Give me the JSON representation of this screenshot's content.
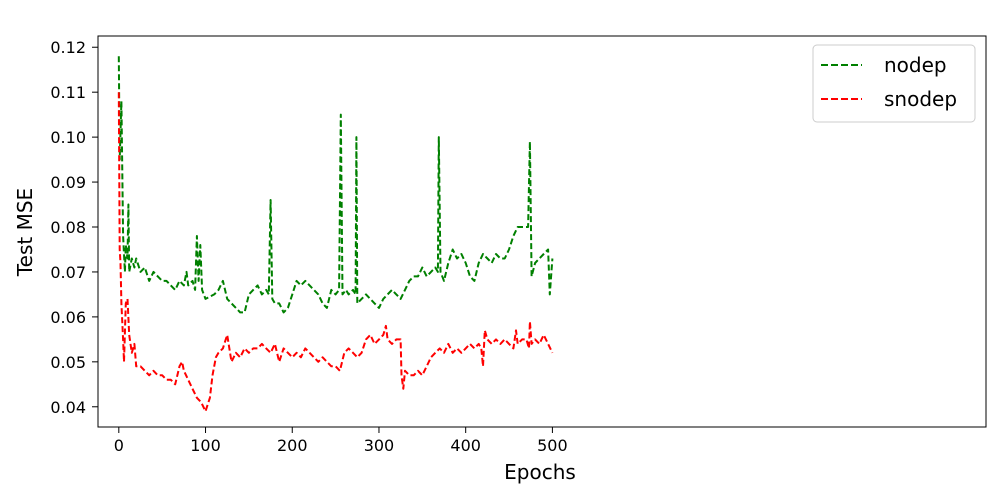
{
  "chart_data": {
    "type": "line",
    "xlabel": "Epochs",
    "ylabel": "Test MSE",
    "xlim": [
      -24,
      1000
    ],
    "ylim": [
      0.0355,
      0.1225
    ],
    "xticks": [
      0,
      100,
      200,
      300,
      400,
      500
    ],
    "yticks": [
      0.04,
      0.05,
      0.06,
      0.07,
      0.08,
      0.09,
      0.1,
      0.11,
      0.12
    ],
    "ytick_labels": [
      "0.04",
      "0.05",
      "0.06",
      "0.07",
      "0.08",
      "0.09",
      "0.10",
      "0.11",
      "0.12"
    ],
    "grid": false,
    "legend_position": "top-right",
    "series": [
      {
        "name": "nodep",
        "color": "#008000",
        "dash": "dashed",
        "points": [
          [
            0,
            0.118
          ],
          [
            1,
            0.095
          ],
          [
            3,
            0.108
          ],
          [
            5,
            0.078
          ],
          [
            7,
            0.07
          ],
          [
            8,
            0.076
          ],
          [
            10,
            0.073
          ],
          [
            11,
            0.085
          ],
          [
            12,
            0.07
          ],
          [
            15,
            0.073
          ],
          [
            18,
            0.071
          ],
          [
            20,
            0.073
          ],
          [
            25,
            0.07
          ],
          [
            30,
            0.071
          ],
          [
            35,
            0.068
          ],
          [
            40,
            0.07
          ],
          [
            45,
            0.069
          ],
          [
            50,
            0.068
          ],
          [
            55,
            0.068
          ],
          [
            60,
            0.067
          ],
          [
            65,
            0.066
          ],
          [
            70,
            0.068
          ],
          [
            75,
            0.067
          ],
          [
            78,
            0.07
          ],
          [
            80,
            0.067
          ],
          [
            85,
            0.068
          ],
          [
            88,
            0.066
          ],
          [
            90,
            0.078
          ],
          [
            92,
            0.068
          ],
          [
            94,
            0.076
          ],
          [
            96,
            0.066
          ],
          [
            100,
            0.064
          ],
          [
            110,
            0.065
          ],
          [
            115,
            0.066
          ],
          [
            120,
            0.068
          ],
          [
            125,
            0.064
          ],
          [
            130,
            0.063
          ],
          [
            135,
            0.062
          ],
          [
            140,
            0.061
          ],
          [
            145,
            0.061
          ],
          [
            150,
            0.065
          ],
          [
            155,
            0.066
          ],
          [
            160,
            0.067
          ],
          [
            165,
            0.065
          ],
          [
            170,
            0.066
          ],
          [
            173,
            0.065
          ],
          [
            175,
            0.086
          ],
          [
            177,
            0.064
          ],
          [
            180,
            0.063
          ],
          [
            185,
            0.063
          ],
          [
            190,
            0.061
          ],
          [
            195,
            0.062
          ],
          [
            200,
            0.065
          ],
          [
            205,
            0.068
          ],
          [
            210,
            0.067
          ],
          [
            215,
            0.068
          ],
          [
            220,
            0.067
          ],
          [
            225,
            0.066
          ],
          [
            230,
            0.065
          ],
          [
            235,
            0.063
          ],
          [
            240,
            0.062
          ],
          [
            245,
            0.066
          ],
          [
            250,
            0.065
          ],
          [
            254,
            0.066
          ],
          [
            256,
            0.105
          ],
          [
            258,
            0.065
          ],
          [
            262,
            0.066
          ],
          [
            265,
            0.065
          ],
          [
            270,
            0.066
          ],
          [
            273,
            0.065
          ],
          [
            274,
            0.1
          ],
          [
            275,
            0.063
          ],
          [
            280,
            0.064
          ],
          [
            285,
            0.065
          ],
          [
            290,
            0.064
          ],
          [
            295,
            0.063
          ],
          [
            300,
            0.062
          ],
          [
            305,
            0.064
          ],
          [
            310,
            0.065
          ],
          [
            315,
            0.066
          ],
          [
            320,
            0.065
          ],
          [
            325,
            0.064
          ],
          [
            330,
            0.066
          ],
          [
            335,
            0.068
          ],
          [
            340,
            0.069
          ],
          [
            345,
            0.069
          ],
          [
            350,
            0.071
          ],
          [
            355,
            0.069
          ],
          [
            360,
            0.07
          ],
          [
            365,
            0.071
          ],
          [
            368,
            0.07
          ],
          [
            369,
            0.1
          ],
          [
            371,
            0.07
          ],
          [
            375,
            0.068
          ],
          [
            380,
            0.072
          ],
          [
            385,
            0.075
          ],
          [
            390,
            0.073
          ],
          [
            395,
            0.074
          ],
          [
            400,
            0.072
          ],
          [
            405,
            0.069
          ],
          [
            410,
            0.068
          ],
          [
            415,
            0.072
          ],
          [
            420,
            0.074
          ],
          [
            425,
            0.073
          ],
          [
            430,
            0.072
          ],
          [
            435,
            0.074
          ],
          [
            440,
            0.073
          ],
          [
            445,
            0.073
          ],
          [
            450,
            0.075
          ],
          [
            455,
            0.078
          ],
          [
            460,
            0.08
          ],
          [
            465,
            0.08
          ],
          [
            470,
            0.08
          ],
          [
            472,
            0.08
          ],
          [
            474,
            0.099
          ],
          [
            476,
            0.069
          ],
          [
            480,
            0.072
          ],
          [
            485,
            0.073
          ],
          [
            490,
            0.074
          ],
          [
            495,
            0.075
          ],
          [
            497,
            0.065
          ],
          [
            500,
            0.073
          ]
        ]
      },
      {
        "name": "snodep",
        "color": "#ff0000",
        "dash": "dashed",
        "points": [
          [
            0,
            0.11
          ],
          [
            1,
            0.075
          ],
          [
            2,
            0.072
          ],
          [
            3,
            0.063
          ],
          [
            5,
            0.055
          ],
          [
            6,
            0.05
          ],
          [
            8,
            0.063
          ],
          [
            10,
            0.064
          ],
          [
            12,
            0.056
          ],
          [
            15,
            0.052
          ],
          [
            18,
            0.054
          ],
          [
            20,
            0.049
          ],
          [
            25,
            0.049
          ],
          [
            30,
            0.048
          ],
          [
            35,
            0.047
          ],
          [
            40,
            0.048
          ],
          [
            45,
            0.047
          ],
          [
            50,
            0.047
          ],
          [
            55,
            0.046
          ],
          [
            60,
            0.046
          ],
          [
            65,
            0.045
          ],
          [
            70,
            0.049
          ],
          [
            73,
            0.05
          ],
          [
            75,
            0.048
          ],
          [
            80,
            0.046
          ],
          [
            85,
            0.044
          ],
          [
            90,
            0.042
          ],
          [
            95,
            0.041
          ],
          [
            100,
            0.039
          ],
          [
            105,
            0.042
          ],
          [
            108,
            0.047
          ],
          [
            112,
            0.051
          ],
          [
            115,
            0.052
          ],
          [
            120,
            0.053
          ],
          [
            125,
            0.056
          ],
          [
            130,
            0.05
          ],
          [
            135,
            0.052
          ],
          [
            140,
            0.051
          ],
          [
            145,
            0.053
          ],
          [
            150,
            0.052
          ],
          [
            155,
            0.053
          ],
          [
            160,
            0.053
          ],
          [
            165,
            0.054
          ],
          [
            170,
            0.053
          ],
          [
            175,
            0.052
          ],
          [
            180,
            0.054
          ],
          [
            185,
            0.05
          ],
          [
            190,
            0.053
          ],
          [
            195,
            0.052
          ],
          [
            200,
            0.051
          ],
          [
            205,
            0.052
          ],
          [
            210,
            0.051
          ],
          [
            215,
            0.053
          ],
          [
            220,
            0.052
          ],
          [
            225,
            0.051
          ],
          [
            230,
            0.05
          ],
          [
            235,
            0.051
          ],
          [
            240,
            0.05
          ],
          [
            245,
            0.049
          ],
          [
            250,
            0.049
          ],
          [
            255,
            0.048
          ],
          [
            260,
            0.052
          ],
          [
            265,
            0.053
          ],
          [
            270,
            0.052
          ],
          [
            275,
            0.051
          ],
          [
            280,
            0.052
          ],
          [
            285,
            0.055
          ],
          [
            290,
            0.056
          ],
          [
            295,
            0.054
          ],
          [
            300,
            0.055
          ],
          [
            305,
            0.056
          ],
          [
            308,
            0.058
          ],
          [
            310,
            0.055
          ],
          [
            315,
            0.054
          ],
          [
            320,
            0.055
          ],
          [
            325,
            0.055
          ],
          [
            326,
            0.047
          ],
          [
            328,
            0.044
          ],
          [
            330,
            0.048
          ],
          [
            335,
            0.047
          ],
          [
            340,
            0.047
          ],
          [
            345,
            0.048
          ],
          [
            350,
            0.047
          ],
          [
            355,
            0.049
          ],
          [
            360,
            0.051
          ],
          [
            365,
            0.052
          ],
          [
            370,
            0.053
          ],
          [
            375,
            0.052
          ],
          [
            380,
            0.054
          ],
          [
            385,
            0.052
          ],
          [
            390,
            0.053
          ],
          [
            395,
            0.052
          ],
          [
            400,
            0.053
          ],
          [
            405,
            0.054
          ],
          [
            410,
            0.053
          ],
          [
            415,
            0.054
          ],
          [
            418,
            0.053
          ],
          [
            420,
            0.049
          ],
          [
            422,
            0.057
          ],
          [
            425,
            0.055
          ],
          [
            430,
            0.054
          ],
          [
            435,
            0.055
          ],
          [
            440,
            0.054
          ],
          [
            445,
            0.055
          ],
          [
            450,
            0.054
          ],
          [
            455,
            0.053
          ],
          [
            458,
            0.057
          ],
          [
            460,
            0.054
          ],
          [
            465,
            0.055
          ],
          [
            470,
            0.055
          ],
          [
            473,
            0.053
          ],
          [
            474,
            0.059
          ],
          [
            476,
            0.054
          ],
          [
            480,
            0.055
          ],
          [
            485,
            0.054
          ],
          [
            490,
            0.056
          ],
          [
            495,
            0.054
          ],
          [
            500,
            0.052
          ]
        ]
      }
    ]
  }
}
